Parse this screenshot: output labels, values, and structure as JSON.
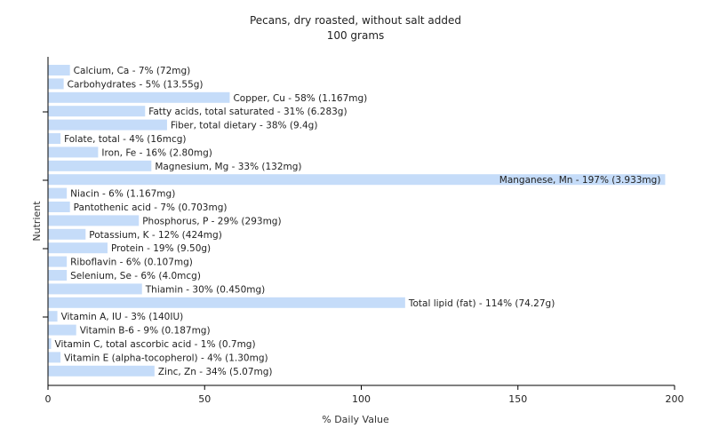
{
  "chart_data": {
    "type": "bar",
    "orientation": "horizontal",
    "title": "Pecans, dry roasted, without salt added",
    "subtitle": "100 grams",
    "xlabel": "% Daily Value",
    "ylabel": "Nutrient",
    "xlim": [
      0,
      200
    ],
    "xticks": [
      0,
      50,
      100,
      150,
      200
    ],
    "grid": false,
    "bar_color": "#c5dcf9",
    "categories": [
      "Calcium, Ca",
      "Carbohydrates",
      "Copper, Cu",
      "Fatty acids, total saturated",
      "Fiber, total dietary",
      "Folate, total",
      "Iron, Fe",
      "Magnesium, Mg",
      "Manganese, Mn",
      "Niacin",
      "Pantothenic acid",
      "Phosphorus, P",
      "Potassium, K",
      "Protein",
      "Riboflavin",
      "Selenium, Se",
      "Thiamin",
      "Total lipid (fat)",
      "Vitamin A, IU",
      "Vitamin B-6",
      "Vitamin C, total ascorbic acid",
      "Vitamin E (alpha-tocopherol)",
      "Zinc, Zn"
    ],
    "values": [
      7,
      5,
      58,
      31,
      38,
      4,
      16,
      33,
      197,
      6,
      7,
      29,
      12,
      19,
      6,
      6,
      30,
      114,
      3,
      9,
      1,
      4,
      34
    ],
    "labels": [
      "Calcium, Ca - 7% (72mg)",
      "Carbohydrates - 5% (13.55g)",
      "Copper, Cu - 58% (1.167mg)",
      "Fatty acids, total saturated - 31% (6.283g)",
      "Fiber, total dietary - 38% (9.4g)",
      "Folate, total - 4% (16mcg)",
      "Iron, Fe - 16% (2.80mg)",
      "Magnesium, Mg - 33% (132mg)",
      "Manganese, Mn - 197% (3.933mg)",
      "Niacin - 6% (1.167mg)",
      "Pantothenic acid - 7% (0.703mg)",
      "Phosphorus, P - 29% (293mg)",
      "Potassium, K - 12% (424mg)",
      "Protein - 19% (9.50g)",
      "Riboflavin - 6% (0.107mg)",
      "Selenium, Se - 6% (4.0mcg)",
      "Thiamin - 30% (0.450mg)",
      "Total lipid (fat) - 114% (74.27g)",
      "Vitamin A, IU - 3% (140IU)",
      "Vitamin B-6 - 9% (0.187mg)",
      "Vitamin C, total ascorbic acid - 1% (0.7mg)",
      "Vitamin E (alpha-tocopherol) - 4% (1.30mg)",
      "Zinc, Zn - 34% (5.07mg)"
    ]
  }
}
